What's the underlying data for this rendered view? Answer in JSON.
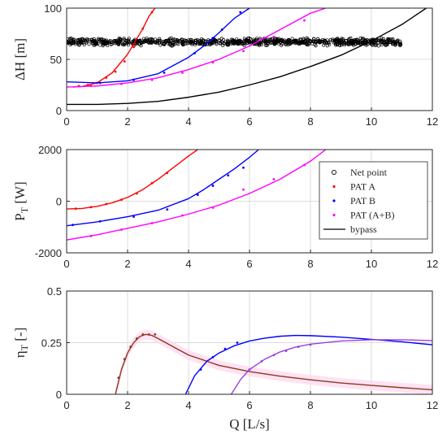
{
  "chart_data": [
    {
      "type": "scatter",
      "panel": "head",
      "ylabel_main": "ΔH",
      "ylabel_unit": "[m]",
      "xlim": [
        0,
        12
      ],
      "ylim": [
        0,
        100
      ],
      "xticks": [
        "0",
        "2",
        "4",
        "6",
        "8",
        "10",
        "12"
      ],
      "yticks": [
        "0",
        "50",
        "100"
      ],
      "grid": true,
      "series": [
        {
          "name": "Net point",
          "style": "circles",
          "color": "#000000",
          "x_range": [
            0,
            11
          ],
          "y_center": 67,
          "y_spread": 4
        },
        {
          "name": "PAT A",
          "color": "#ff0000",
          "curve": {
            "x": [
              0.2,
              0.5,
              1.0,
              1.5,
              2.0,
              2.5,
              2.7,
              2.9
            ],
            "y": [
              23,
              23.5,
              27,
              37,
              55,
              80,
              92,
              100
            ]
          },
          "points": {
            "x": [
              0.4,
              0.7,
              1.0,
              1.3,
              1.6,
              1.9,
              2.2,
              2.5,
              2.8
            ],
            "y": [
              24,
              25,
              27,
              32,
              38,
              48,
              62,
              80,
              96
            ]
          }
        },
        {
          "name": "PAT B",
          "color": "#0000ff",
          "curve": {
            "x": [
              0,
              1,
              2,
              3,
              4,
              4.5,
              5,
              5.5,
              6.0
            ],
            "y": [
              28,
              27,
              29,
              36,
              52,
              63,
              76,
              90,
              100
            ]
          },
          "points": {
            "x": [
              1.1,
              2.2,
              3.2,
              4.2,
              4.8,
              5.1,
              5.7
            ],
            "y": [
              27,
              30,
              37,
              56,
              70,
              79,
              96
            ]
          }
        },
        {
          "name": "PAT (A+B)",
          "color": "#ff00ff",
          "curve": {
            "x": [
              0,
              1,
              2,
              3,
              4,
              5,
              6,
              7,
              8,
              8.5
            ],
            "y": [
              23,
              24,
              27,
              32,
              40,
              50,
              63,
              79,
              95,
              100
            ]
          },
          "points": {
            "x": [
              0.8,
              1.8,
              2.8,
              3.8,
              4.8,
              5.8,
              6.8,
              7.8
            ],
            "y": [
              24,
              26,
              30,
              37,
              47,
              58,
              72,
              88
            ]
          }
        },
        {
          "name": "bypass",
          "color": "#000000",
          "curve": {
            "x": [
              0,
              1,
              2,
              3,
              4,
              5,
              6,
              7,
              8,
              9,
              10,
              11,
              11.8
            ],
            "y": [
              6,
              6,
              7,
              9,
              13,
              18,
              25,
              33,
              43,
              54,
              68,
              84,
              100
            ]
          }
        }
      ]
    },
    {
      "type": "line",
      "panel": "power",
      "ylabel_main": "P",
      "ylabel_sub": "T",
      "ylabel_unit": "[W]",
      "xlim": [
        0,
        12
      ],
      "ylim": [
        -2000,
        2000
      ],
      "xticks": [
        "0",
        "2",
        "4",
        "6",
        "8",
        "10",
        "12"
      ],
      "yticks": [
        "-2000",
        "0",
        "2000"
      ],
      "grid": true,
      "legend": {
        "position": "right",
        "entries": [
          {
            "label": "Net point",
            "marker": "circle",
            "color": "#000000"
          },
          {
            "label": "PAT A",
            "marker": "dot",
            "color": "#ff0000"
          },
          {
            "label": "PAT B",
            "marker": "dot",
            "color": "#0000ff"
          },
          {
            "label": "PAT (A+B)",
            "marker": "dot",
            "color": "#ff00ff"
          },
          {
            "label": "bypass",
            "marker": "line",
            "color": "#000000"
          }
        ]
      },
      "series": [
        {
          "name": "PAT A",
          "color": "#ff0000",
          "curve": {
            "x": [
              0,
              0.5,
              1.0,
              1.5,
              2.0,
              2.5,
              3.0,
              3.5,
              4.0,
              4.3
            ],
            "y": [
              -300,
              -280,
              -200,
              -60,
              150,
              450,
              850,
              1300,
              1750,
              2000
            ]
          },
          "points": {
            "x": [
              0.3,
              0.8,
              1.3,
              1.8,
              2.3,
              2.8,
              3.3
            ],
            "y": [
              -290,
              -230,
              -110,
              60,
              300,
              700,
              1100
            ]
          }
        },
        {
          "name": "PAT B",
          "color": "#0000ff",
          "curve": {
            "x": [
              0,
              1,
              2,
              3,
              4,
              4.5,
              5,
              5.5,
              6.0,
              6.3
            ],
            "y": [
              -950,
              -800,
              -600,
              -350,
              100,
              450,
              850,
              1250,
              1700,
              2000
            ]
          },
          "points": {
            "x": [
              0.2,
              1.1,
              2.2,
              3.3,
              4.3,
              4.8,
              5.3,
              5.8
            ],
            "y": [
              -920,
              -780,
              -600,
              -320,
              250,
              600,
              1000,
              1300
            ]
          }
        },
        {
          "name": "PAT (A+B)",
          "color": "#ff00ff",
          "curve": {
            "x": [
              0,
              1,
              2,
              3,
              4,
              5,
              6,
              7,
              8,
              8.5
            ],
            "y": [
              -1500,
              -1300,
              -1050,
              -800,
              -500,
              -150,
              300,
              850,
              1550,
              2000
            ]
          },
          "points": {
            "x": [
              0.8,
              1.8,
              2.8,
              3.8,
              4.8,
              5.8,
              6.8,
              7.8
            ],
            "y": [
              -1350,
              -1100,
              -850,
              -550,
              -250,
              450,
              850,
              1400
            ]
          }
        }
      ]
    },
    {
      "type": "line",
      "panel": "efficiency",
      "xlabel_main": "Q",
      "xlabel_unit": "[L/s]",
      "ylabel_main": "η",
      "ylabel_sub": "T",
      "ylabel_unit": "[-]",
      "xlim": [
        0,
        12
      ],
      "ylim": [
        0,
        0.5
      ],
      "xticks": [
        "0",
        "2",
        "4",
        "6",
        "8",
        "10",
        "12"
      ],
      "yticks": [
        "0",
        "0.25",
        "0.5"
      ],
      "grid": true,
      "series": [
        {
          "name": "PAT A",
          "color": "#8b3a1a",
          "curve": {
            "x": [
              1.6,
              1.8,
              2.0,
              2.2,
              2.4,
              2.6,
              2.8,
              3.0,
              3.5,
              4,
              5,
              6,
              7,
              8,
              9,
              10,
              11,
              12
            ],
            "y": [
              0.0,
              0.12,
              0.2,
              0.25,
              0.28,
              0.29,
              0.285,
              0.27,
              0.23,
              0.19,
              0.14,
              0.11,
              0.088,
              0.07,
              0.055,
              0.043,
              0.032,
              0.022
            ]
          },
          "points": {
            "x": [
              1.7,
              1.9,
              2.1,
              2.3,
              2.5,
              2.7,
              2.9
            ],
            "y": [
              0.08,
              0.17,
              0.23,
              0.27,
              0.29,
              0.29,
              0.29
            ]
          }
        },
        {
          "name": "PAT B",
          "color": "#0000ff",
          "curve": {
            "x": [
              3.9,
              4.2,
              4.6,
              5.0,
              5.5,
              6.0,
              6.5,
              7.0,
              7.5,
              8,
              9,
              10,
              11,
              12
            ],
            "y": [
              0.0,
              0.09,
              0.16,
              0.2,
              0.235,
              0.258,
              0.272,
              0.281,
              0.285,
              0.284,
              0.277,
              0.266,
              0.254,
              0.24
            ]
          },
          "points": {
            "x": [
              4.4,
              4.8,
              5.2,
              5.6
            ],
            "y": [
              0.12,
              0.18,
              0.22,
              0.25
            ]
          }
        },
        {
          "name": "PAT (A+B)",
          "color": "#9b3fdc",
          "curve": {
            "x": [
              5.4,
              5.7,
              6.0,
              6.5,
              7.0,
              7.5,
              8,
              9,
              10,
              11,
              12
            ],
            "y": [
              0.0,
              0.07,
              0.12,
              0.17,
              0.205,
              0.228,
              0.243,
              0.258,
              0.264,
              0.264,
              0.26
            ]
          },
          "points": {
            "x": [
              6.0,
              6.4,
              6.8,
              7.2,
              7.6,
              8.0
            ],
            "y": [
              0.12,
              0.16,
              0.19,
              0.21,
              0.23,
              0.24
            ]
          }
        }
      ]
    }
  ]
}
